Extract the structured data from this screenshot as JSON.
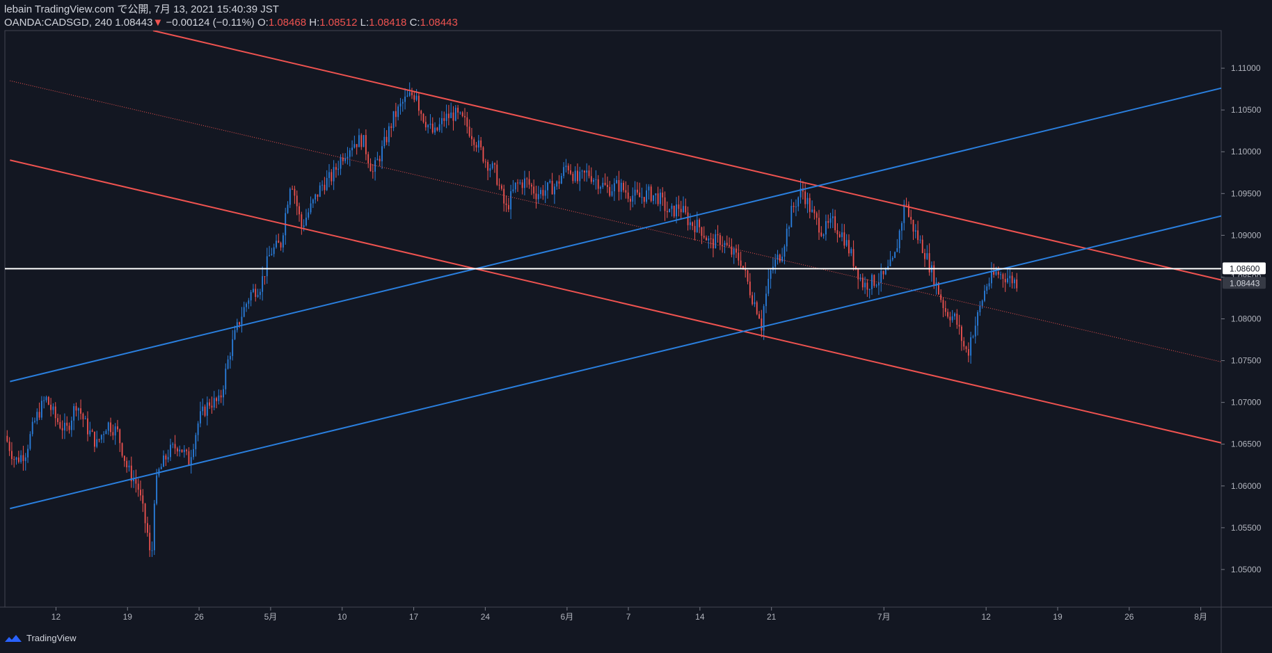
{
  "header": {
    "line1": "lebain TradingView.com で公開, 7月 13, 2021 15:40:39 JST",
    "symbol": "OANDA:CADSGD, 240",
    "last": "1.08443",
    "change": "−0.00124 (−0.11%)",
    "o_label": "O:",
    "o_val": "1.08468",
    "h_label": "H:",
    "h_val": "1.08512",
    "l_label": "L:",
    "l_val": "1.08418",
    "c_label": "C:",
    "c_val": "1.08443"
  },
  "brand": {
    "name": "TradingView",
    "icon": "tradingview-logo-icon"
  },
  "colors": {
    "bg": "#131722",
    "up": "#2a7fde",
    "down": "#ef5350",
    "red_line": "#ef5350",
    "blue_line": "#2a7fde",
    "grid": "#363a45",
    "text": "#b2b5be"
  },
  "chart_data": {
    "type": "candlestick",
    "symbol": "OANDA:CADSGD",
    "interval": "240",
    "ylim": [
      1.0455,
      1.1145
    ],
    "y_ticks": [
      "1.11000",
      "1.10500",
      "1.10000",
      "1.09500",
      "1.09000",
      "1.08500",
      "1.08000",
      "1.07500",
      "1.07000",
      "1.06500",
      "1.06000",
      "1.05500",
      "1.05000"
    ],
    "y_tick_values": [
      1.11,
      1.105,
      1.1,
      1.095,
      1.09,
      1.085,
      1.08,
      1.075,
      1.07,
      1.065,
      1.06,
      1.055,
      1.05
    ],
    "x_range_days": [
      0,
      119
    ],
    "x_ticks": [
      {
        "day": 5,
        "label": "12"
      },
      {
        "day": 12,
        "label": "19"
      },
      {
        "day": 19,
        "label": "26"
      },
      {
        "day": 26,
        "label": "5月"
      },
      {
        "day": 33,
        "label": "10"
      },
      {
        "day": 40,
        "label": "17"
      },
      {
        "day": 47,
        "label": "24"
      },
      {
        "day": 55,
        "label": "6月"
      },
      {
        "day": 61,
        "label": "7"
      },
      {
        "day": 68,
        "label": "14"
      },
      {
        "day": 75,
        "label": "21"
      },
      {
        "day": 86,
        "label": "7月"
      },
      {
        "day": 96,
        "label": "12"
      },
      {
        "day": 103,
        "label": "19"
      },
      {
        "day": 110,
        "label": "26"
      },
      {
        "day": 117,
        "label": "8月"
      }
    ],
    "horizontal_line": {
      "value": 1.086,
      "label": "1.08600"
    },
    "last_price": {
      "value": 1.08443,
      "label": "1.08443"
    },
    "trend_lines": [
      {
        "name": "red-channel-upper",
        "color": "#ef5350",
        "style": "solid",
        "p1": [
          14.5,
          1.1145
        ],
        "p2": [
          122,
          1.0838
        ]
      },
      {
        "name": "red-channel-middle",
        "color": "#ef5350",
        "style": "dotted",
        "p1": [
          0.5,
          1.1085
        ],
        "p2": [
          122,
          1.074
        ]
      },
      {
        "name": "red-channel-lower",
        "color": "#ef5350",
        "style": "solid",
        "p1": [
          0.5,
          1.099
        ],
        "p2": [
          122,
          1.0643
        ]
      },
      {
        "name": "blue-channel-upper",
        "color": "#2a7fde",
        "style": "solid",
        "p1": [
          0.5,
          1.0725
        ],
        "p2": [
          122,
          1.1085
        ]
      },
      {
        "name": "blue-channel-lower",
        "color": "#2a7fde",
        "style": "solid",
        "p1": [
          0.5,
          1.0573
        ],
        "p2": [
          122,
          1.0932
        ]
      }
    ],
    "price_path": [
      [
        0,
        1.066
      ],
      [
        1,
        1.063
      ],
      [
        2,
        1.064
      ],
      [
        3,
        1.068
      ],
      [
        4,
        1.0705
      ],
      [
        5,
        1.068
      ],
      [
        6,
        1.0665
      ],
      [
        7,
        1.07
      ],
      [
        8,
        1.067
      ],
      [
        9,
        1.065
      ],
      [
        10,
        1.0675
      ],
      [
        11,
        1.0665
      ],
      [
        12,
        1.062
      ],
      [
        13,
        1.06
      ],
      [
        14,
        1.054
      ],
      [
        15,
        1.0615
      ],
      [
        16,
        1.064
      ],
      [
        17,
        1.065
      ],
      [
        18,
        1.063
      ],
      [
        19,
        1.068
      ],
      [
        20,
        1.07
      ],
      [
        21,
        1.07
      ],
      [
        22,
        1.076
      ],
      [
        23,
        1.08
      ],
      [
        24,
        1.083
      ],
      [
        25,
        1.084
      ],
      [
        26,
        1.088
      ],
      [
        27,
        1.089
      ],
      [
        28,
        1.097
      ],
      [
        29,
        1.091
      ],
      [
        30,
        1.0935
      ],
      [
        31,
        1.096
      ],
      [
        32,
        1.097
      ],
      [
        33,
        1.0995
      ],
      [
        34,
        1.101
      ],
      [
        35,
        1.1015
      ],
      [
        36,
        1.0975
      ],
      [
        37,
        1.1005
      ],
      [
        38,
        1.104
      ],
      [
        39,
        1.106
      ],
      [
        40,
        1.107
      ],
      [
        41,
        1.104
      ],
      [
        42,
        1.102
      ],
      [
        43,
        1.104
      ],
      [
        44,
        1.1045
      ],
      [
        45,
        1.1035
      ],
      [
        46,
        1.1015
      ],
      [
        47,
        1.099
      ],
      [
        48,
        1.0975
      ],
      [
        49,
        1.093
      ],
      [
        50,
        1.096
      ],
      [
        51,
        1.0965
      ],
      [
        52,
        1.095
      ],
      [
        53,
        1.0955
      ],
      [
        54,
        1.096
      ],
      [
        55,
        1.0985
      ],
      [
        56,
        1.0965
      ],
      [
        57,
        1.0975
      ],
      [
        58,
        1.0965
      ],
      [
        59,
        1.0955
      ],
      [
        60,
        1.096
      ],
      [
        61,
        1.095
      ],
      [
        62,
        1.0945
      ],
      [
        63,
        1.095
      ],
      [
        64,
        1.0945
      ],
      [
        65,
        1.0925
      ],
      [
        66,
        1.0935
      ],
      [
        67,
        1.0915
      ],
      [
        68,
        1.091
      ],
      [
        69,
        1.089
      ],
      [
        70,
        1.0895
      ],
      [
        71,
        1.088
      ],
      [
        72,
        1.087
      ],
      [
        73,
        1.083
      ],
      [
        74,
        1.08
      ],
      [
        75,
        1.086
      ],
      [
        76,
        1.088
      ],
      [
        77,
        1.093
      ],
      [
        78,
        1.0955
      ],
      [
        79,
        1.0925
      ],
      [
        80,
        1.0905
      ],
      [
        81,
        1.0915
      ],
      [
        82,
        1.09
      ],
      [
        83,
        1.087
      ],
      [
        84,
        1.084
      ],
      [
        85,
        1.0845
      ],
      [
        86,
        1.085
      ],
      [
        87,
        1.087
      ],
      [
        88,
        1.0935
      ],
      [
        89,
        1.0905
      ],
      [
        90,
        1.088
      ],
      [
        91,
        1.0845
      ],
      [
        92,
        1.081
      ],
      [
        93,
        1.08
      ],
      [
        94,
        1.076
      ],
      [
        95,
        1.0795
      ],
      [
        96,
        1.084
      ],
      [
        97,
        1.0855
      ],
      [
        98,
        1.085
      ],
      [
        99,
        1.0844
      ]
    ],
    "extremes": [
      {
        "day": 14.3,
        "low": 1.0515
      },
      {
        "day": 40.2,
        "high": 1.1075
      },
      {
        "day": 74.0,
        "low": 1.0778
      },
      {
        "day": 94.3,
        "low": 1.0748
      },
      {
        "day": 88.2,
        "high": 1.0945
      }
    ]
  }
}
